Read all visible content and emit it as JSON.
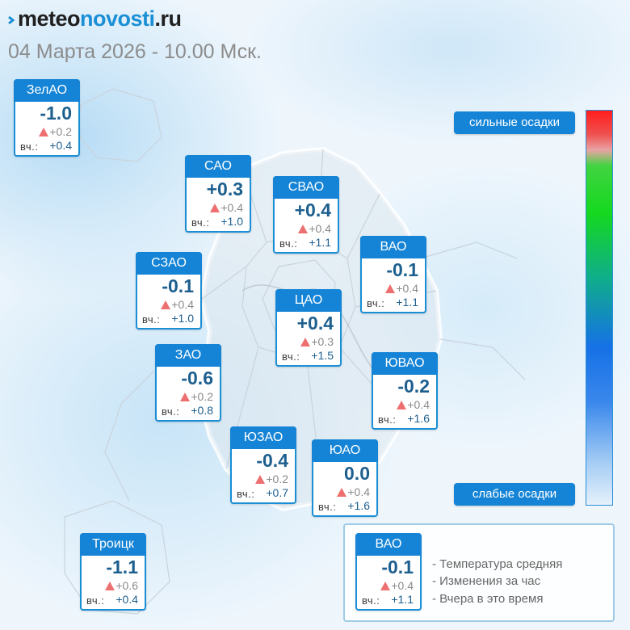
{
  "header": {
    "logo_part1": "meteo",
    "logo_part2": "novosti",
    "logo_part3": ".ru",
    "datetime": "04 Марта 2026 - 10.00 Мск."
  },
  "yesterday_label": "вч.:",
  "districts": [
    {
      "name": "ЗелАО",
      "temp": "-1.0",
      "delta": "+0.2",
      "yesterday": "+0.4"
    },
    {
      "name": "САО",
      "temp": "+0.3",
      "delta": "+0.4",
      "yesterday": "+1.0"
    },
    {
      "name": "СВАО",
      "temp": "+0.4",
      "delta": "+0.4",
      "yesterday": "+1.1"
    },
    {
      "name": "ВАО",
      "temp": "-0.1",
      "delta": "+0.4",
      "yesterday": "+1.1"
    },
    {
      "name": "СЗАО",
      "temp": "-0.1",
      "delta": "+0.4",
      "yesterday": "+1.0"
    },
    {
      "name": "ЦАО",
      "temp": "+0.4",
      "delta": "+0.3",
      "yesterday": "+1.5"
    },
    {
      "name": "ЗАО",
      "temp": "-0.6",
      "delta": "+0.2",
      "yesterday": "+0.8"
    },
    {
      "name": "ЮВАО",
      "temp": "-0.2",
      "delta": "+0.4",
      "yesterday": "+1.6"
    },
    {
      "name": "ЮЗАО",
      "temp": "-0.4",
      "delta": "+0.2",
      "yesterday": "+0.7"
    },
    {
      "name": "ЮАО",
      "temp": "0.0",
      "delta": "+0.4",
      "yesterday": "+1.6"
    },
    {
      "name": "Троицк",
      "temp": "-1.1",
      "delta": "+0.6",
      "yesterday": "+0.4"
    }
  ],
  "scale": {
    "top_label": "сильные осадки",
    "bottom_label": "слабые осадки"
  },
  "legend": {
    "sample": {
      "name": "ВАО",
      "temp": "-0.1",
      "delta": "+0.4",
      "yesterday": "+1.1"
    },
    "lines": [
      "- Температура средняя",
      "- Изменения за час",
      "- Вчера в это время"
    ]
  },
  "colors": {
    "accent": "#1584d6",
    "temp_text": "#1d5f8f",
    "delta_triangle": "#ee6f6f"
  }
}
